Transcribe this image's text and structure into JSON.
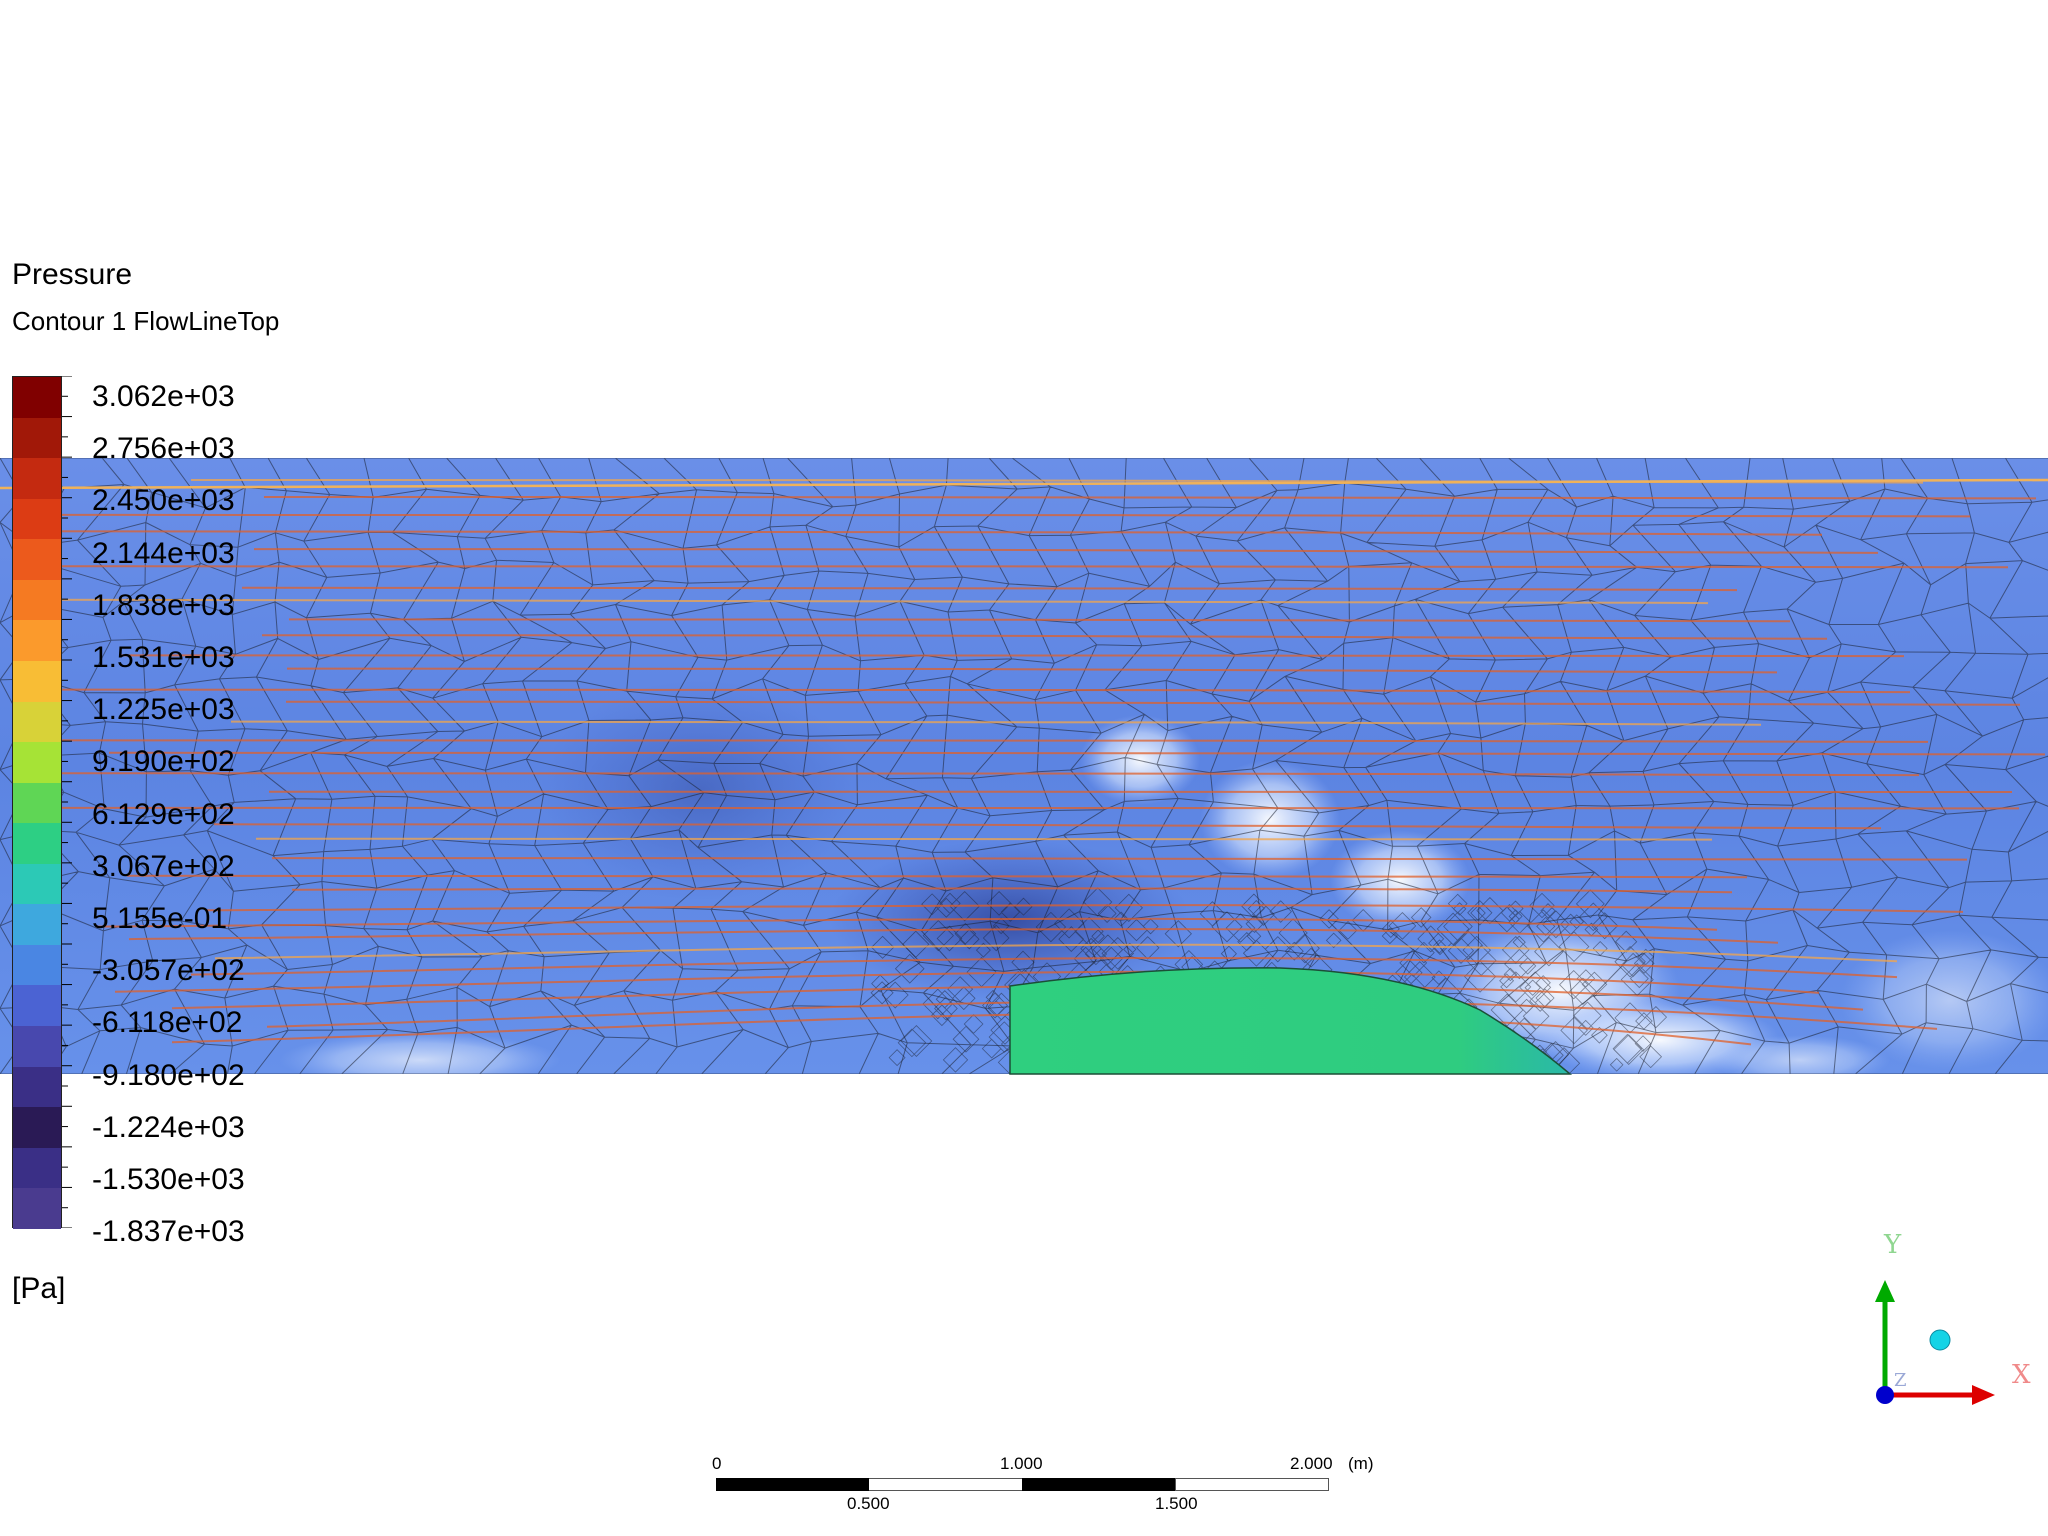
{
  "legend": {
    "title": "Pressure",
    "subtitle": "Contour 1 FlowLineTop",
    "unit": "[Pa]",
    "labels": [
      "3.062e+03",
      "2.756e+03",
      "2.450e+03",
      "2.144e+03",
      "1.838e+03",
      "1.531e+03",
      "1.225e+03",
      "9.190e+02",
      "6.129e+02",
      "3.067e+02",
      "5.155e-01",
      "-3.057e+02",
      "-6.118e+02",
      "-9.180e+02",
      "-1.224e+03",
      "-1.530e+03",
      "-1.837e+03"
    ],
    "colors": [
      "#800000",
      "#a11808",
      "#c42a10",
      "#dc3c14",
      "#ec5a1c",
      "#f57a22",
      "#fb9a2c",
      "#f8bd35",
      "#d8d238",
      "#a6e336",
      "#5fd655",
      "#2dcf84",
      "#2cc9b6",
      "#3ea8de",
      "#4a86e3",
      "#4b63d3",
      "#4848ae",
      "#3a2f86",
      "#2a1a55",
      "#3a2f86",
      "#4a3b8f"
    ]
  },
  "axes": {
    "x": "X",
    "y": "Y",
    "z": "Z"
  },
  "scale": {
    "top_labels": [
      "0",
      "1.000",
      "2.000"
    ],
    "unit": "(m)",
    "bottom_labels": [
      "0.500",
      "1.500"
    ]
  },
  "colors": {
    "domain_base": "#5f86e3",
    "solid_body": "#2ecb7f",
    "streamline": "#e0602a",
    "mesh_line": "#1a1f2e",
    "axis_x": "#dd0000",
    "axis_y": "#00aa00",
    "axis_z": "#0000cc"
  }
}
